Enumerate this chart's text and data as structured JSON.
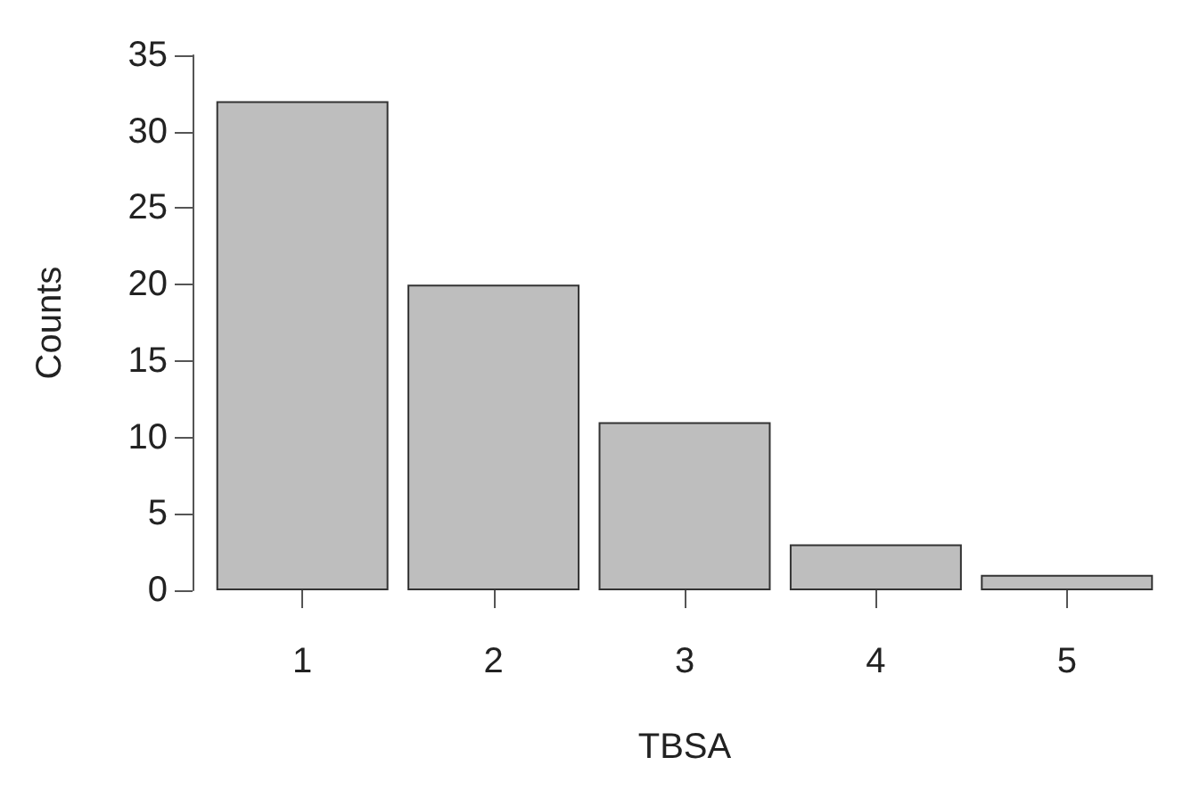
{
  "chart_data": {
    "type": "bar",
    "xlabel": "TBSA",
    "ylabel": "Counts",
    "categories": [
      "1",
      "2",
      "3",
      "4",
      "5"
    ],
    "values": [
      32,
      20,
      11,
      3,
      1
    ],
    "color": "#bebebe",
    "ylim": [
      0,
      35
    ],
    "yticks": [
      0,
      5,
      10,
      15,
      20,
      25,
      30,
      35
    ]
  }
}
